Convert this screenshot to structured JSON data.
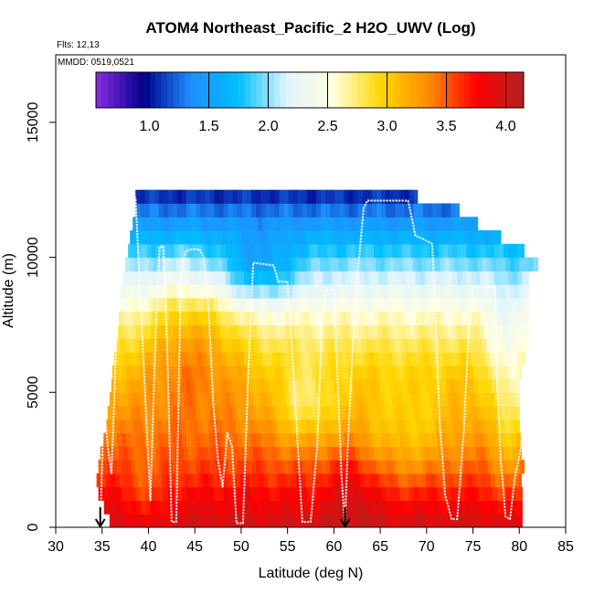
{
  "chart_data": {
    "type": "heatmap",
    "title": "ATOM4 Northeast_Pacific_2 H2O_UWV (Log)",
    "flights_label": "Flts: 12,13",
    "dates_label": "MMDD: 0519,0521",
    "xlabel": "Latitude (deg N)",
    "ylabel": "Altitude (m)",
    "xlim": [
      30,
      85
    ],
    "ylim": [
      0,
      17500
    ],
    "x_ticks": [
      "30",
      "35",
      "40",
      "45",
      "50",
      "55",
      "60",
      "65",
      "70",
      "75",
      "80",
      "85"
    ],
    "y_ticks": [
      "0",
      "5000",
      "10000",
      "15000"
    ],
    "colorbar": {
      "range": [
        0.55,
        4.15
      ],
      "ticks": [
        "1.0",
        "1.5",
        "2.0",
        "2.5",
        "3.0",
        "3.5",
        "4.0"
      ],
      "colors": [
        "#8b2be2",
        "#00008b",
        "#1e90ff",
        "#00bfff",
        "#e0f4ff",
        "#ffffe0",
        "#ffd700",
        "#ff8c00",
        "#ff0000",
        "#b22222"
      ]
    },
    "layer_altitudes_m": [
      250,
      750,
      1250,
      1750,
      2250,
      2750,
      3250,
      3750,
      4250,
      4750,
      5250,
      5750,
      6250,
      6750,
      7250,
      7750,
      8250,
      8750,
      9250,
      9750,
      10250,
      10750,
      11250,
      11750,
      12250
    ],
    "layer_lat_range": [
      [
        35.8,
        80.3
      ],
      [
        35.2,
        80.3
      ],
      [
        34.6,
        80.3
      ],
      [
        34.4,
        80.2
      ],
      [
        34.6,
        80.5
      ],
      [
        34.8,
        80.2
      ],
      [
        35.1,
        80.1
      ],
      [
        35.4,
        80.0
      ],
      [
        35.6,
        80.0
      ],
      [
        35.8,
        80.0
      ],
      [
        36.0,
        80.0
      ],
      [
        36.1,
        80.2
      ],
      [
        36.3,
        80.6
      ],
      [
        36.5,
        81.0
      ],
      [
        36.7,
        81.0
      ],
      [
        36.8,
        81.0
      ],
      [
        37.0,
        81.0
      ],
      [
        37.0,
        81.0
      ],
      [
        37.3,
        81.0
      ],
      [
        37.5,
        82.0
      ],
      [
        37.8,
        80.5
      ],
      [
        38.0,
        78.0
      ],
      [
        38.3,
        75.5
      ],
      [
        38.6,
        73.5
      ],
      [
        38.6,
        69.0
      ]
    ],
    "marker_latitudes": [
      34.8,
      61.2
    ],
    "flight_path": {
      "lat": [
        34.8,
        35.2,
        35.6,
        36.0,
        36.5,
        37.0,
        37.5,
        38.0,
        38.3,
        38.6,
        40.2,
        40.7,
        41.2,
        41.6,
        42.0,
        42.5,
        43.0,
        43.5,
        44.0,
        44.5,
        45.5,
        46.0,
        46.5,
        47.0,
        47.5,
        48.0,
        48.5,
        49.0,
        49.5,
        50.2,
        50.8,
        51.3,
        53.5,
        54.0,
        55.0,
        55.6,
        56.1,
        56.6,
        57.5,
        58.2,
        58.7,
        59.2,
        60.0,
        60.4,
        60.8,
        61.2,
        61.5,
        62.0,
        62.6,
        63.2,
        63.6,
        68.0,
        68.5,
        68.8,
        69.5,
        70.6,
        71.0,
        71.4,
        72.0,
        72.7,
        73.3,
        74.0,
        74.5,
        75.0,
        75.6,
        76.0,
        77.4,
        77.6,
        78.0,
        78.5,
        79.0,
        79.5,
        80.2,
        80.7,
        81.2,
        81.5,
        82.0
      ],
      "alt": [
        0,
        4800,
        3000,
        2000,
        6500,
        9500,
        11500,
        12200,
        12300,
        12200,
        1000,
        6500,
        10400,
        10400,
        7000,
        200,
        200,
        9500,
        10200,
        10300,
        10300,
        10000,
        8000,
        4500,
        2500,
        1500,
        3500,
        3000,
        150,
        150,
        6000,
        9800,
        9700,
        9100,
        9100,
        6000,
        3000,
        200,
        200,
        3000,
        7500,
        8800,
        8800,
        5500,
        2000,
        100,
        3000,
        6500,
        9500,
        11800,
        12100,
        12100,
        11300,
        10800,
        10700,
        10500,
        7500,
        4000,
        1200,
        300,
        300,
        3500,
        7000,
        8900,
        8900,
        8900,
        8900,
        5500,
        2500,
        400,
        300,
        1800,
        3000,
        5000,
        8000,
        9200,
        9400
      ]
    }
  }
}
